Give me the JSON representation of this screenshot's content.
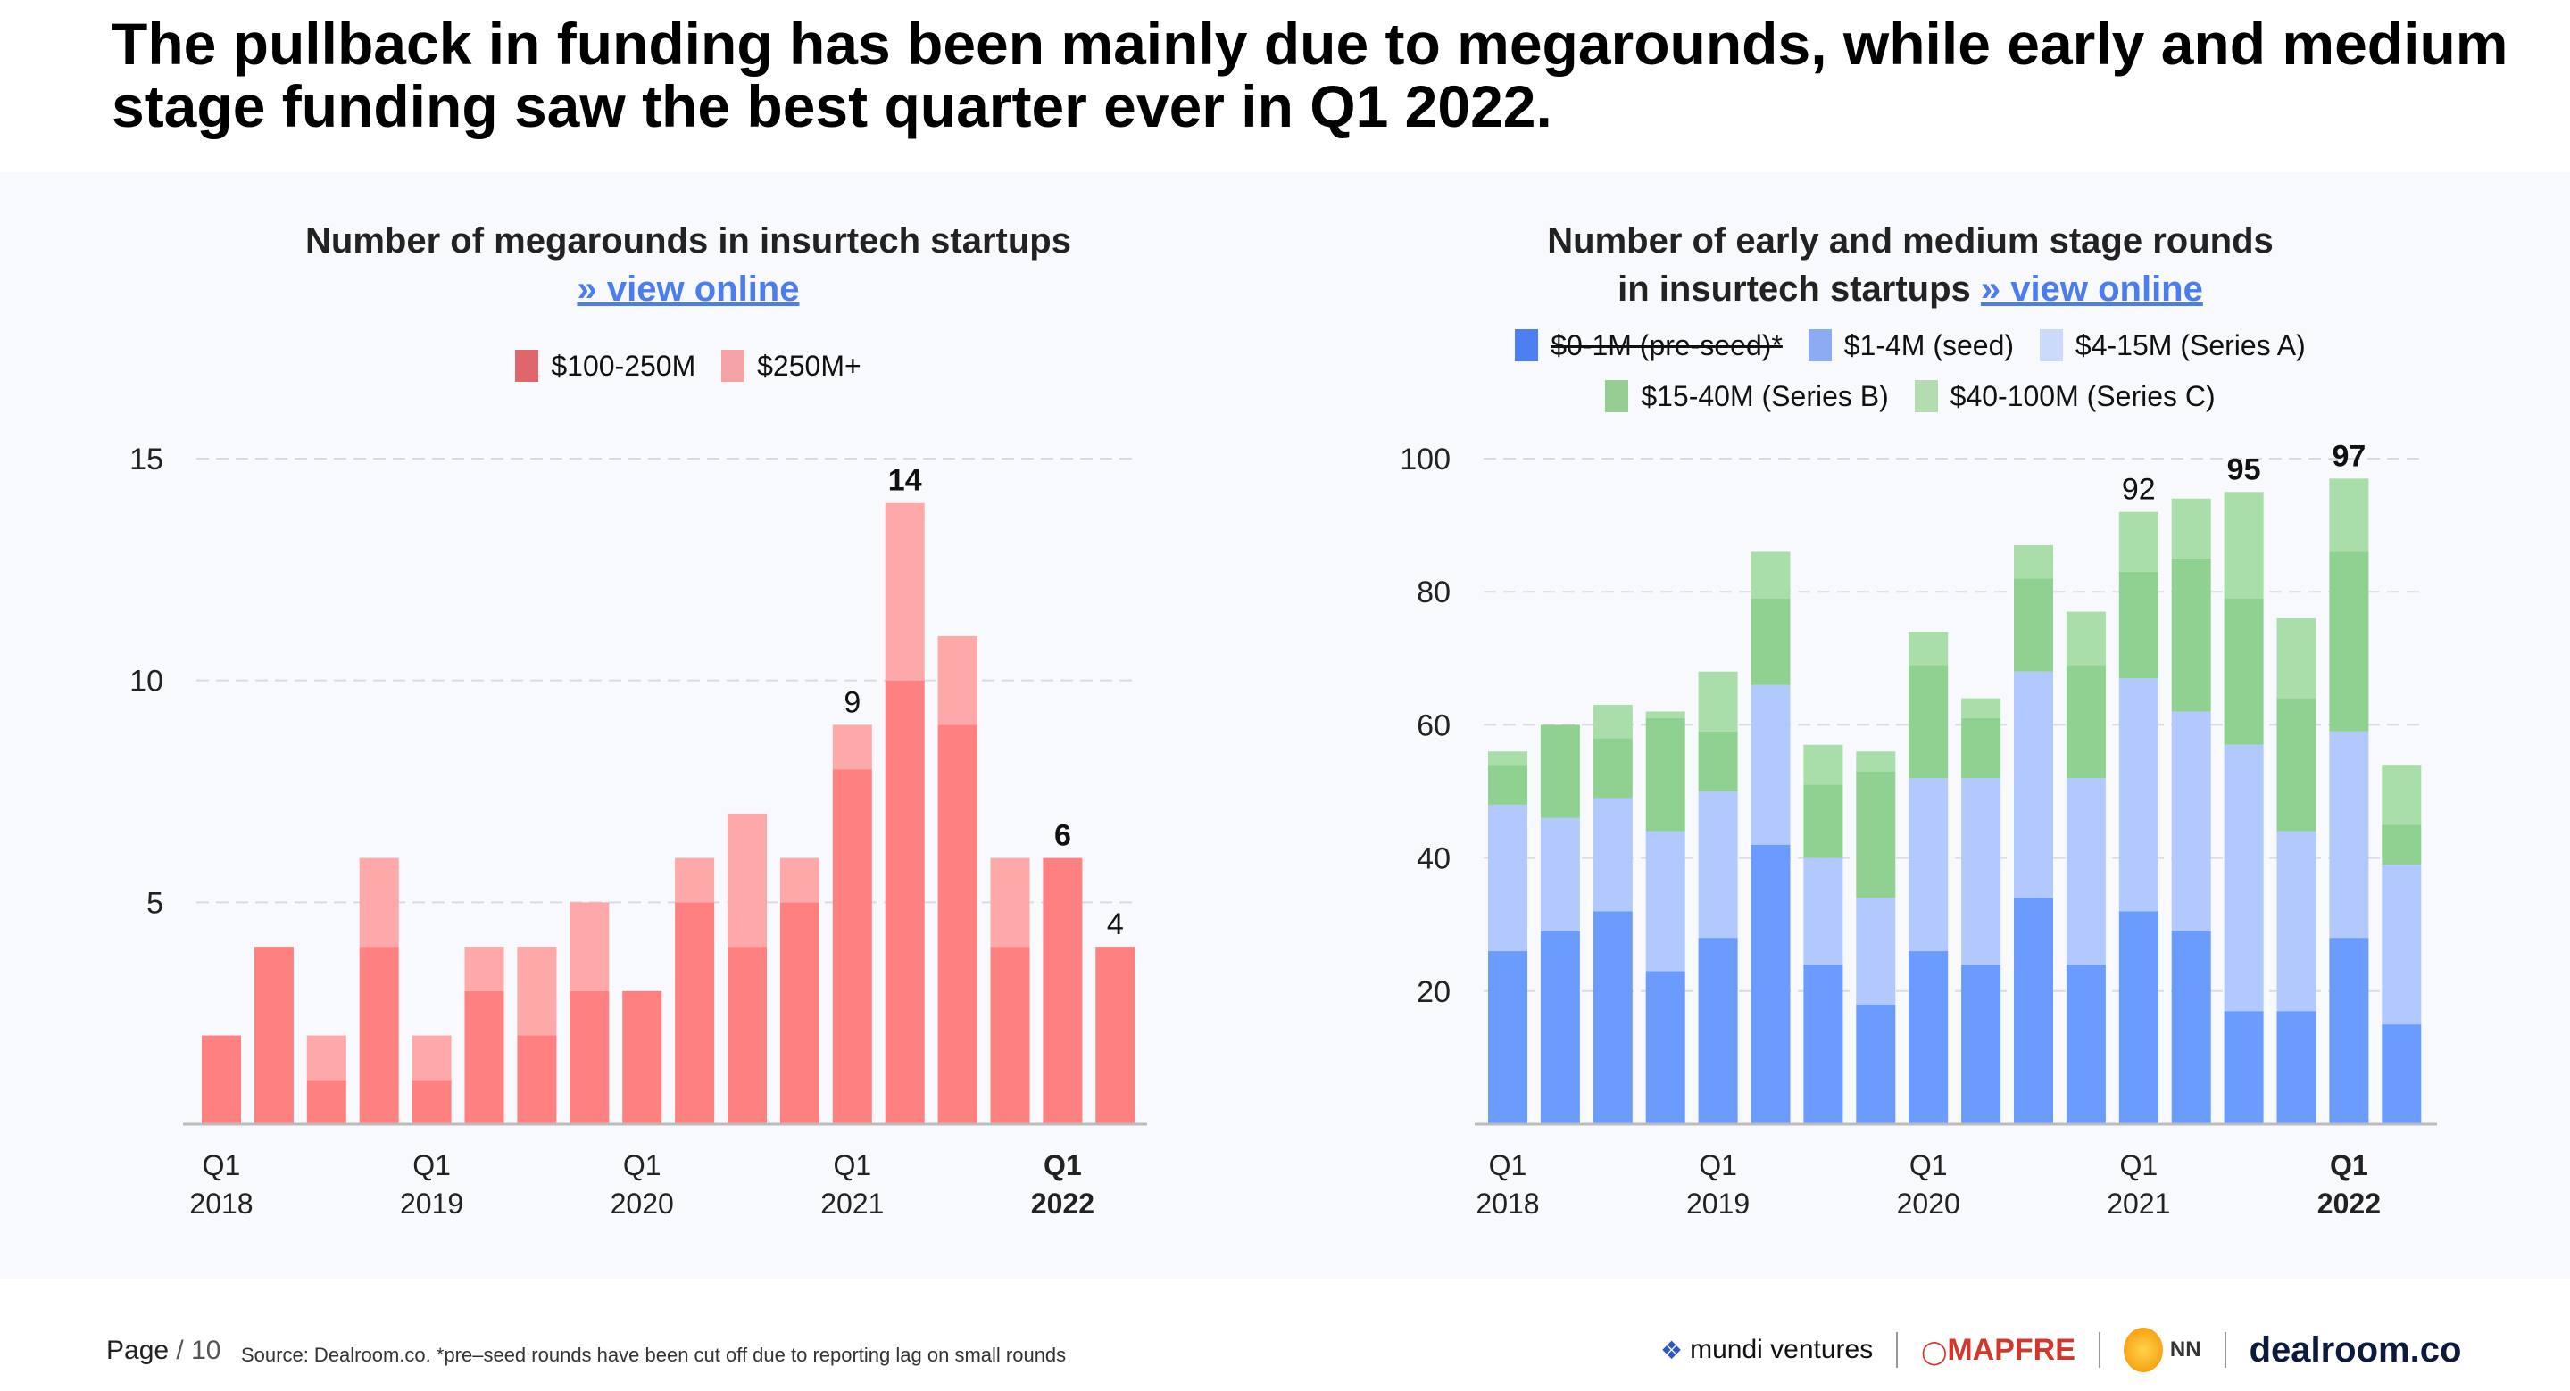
{
  "headline": "The pullback in funding has been mainly due to megarounds, while early and medium stage funding saw the best quarter ever in Q1 2022.",
  "colors": {
    "mega_100_250": "#fe8080",
    "mega_250_plus": "#fda9a9",
    "pre_seed": "#4d7ff2",
    "seed": "#6a9bfd",
    "series_a": "#b1c9fe",
    "series_b": "#8fd190",
    "series_c": "#a9dda9"
  },
  "chart_data": [
    {
      "type": "bar",
      "stacked": true,
      "title": "Number of megarounds in insurtech startups",
      "link_text": "» view online",
      "categories": [
        "Q1 2018",
        "Q2 2018",
        "Q3 2018",
        "Q4 2018",
        "Q1 2019",
        "Q2 2019",
        "Q3 2019",
        "Q4 2019",
        "Q1 2020",
        "Q2 2020",
        "Q3 2020",
        "Q4 2020",
        "Q1 2021",
        "Q2 2021",
        "Q3 2021",
        "Q4 2021",
        "Q1 2022",
        "Q2 2022"
      ],
      "x_ticks": [
        {
          "index": 0,
          "q": "Q1",
          "year": "2018",
          "bold": false
        },
        {
          "index": 4,
          "q": "Q1",
          "year": "2019",
          "bold": false
        },
        {
          "index": 8,
          "q": "Q1",
          "year": "2020",
          "bold": false
        },
        {
          "index": 12,
          "q": "Q1",
          "year": "2021",
          "bold": false
        },
        {
          "index": 16,
          "q": "Q1",
          "year": "2022",
          "bold": true
        }
      ],
      "y_ticks": [
        5,
        10,
        15
      ],
      "ylim": [
        0,
        15
      ],
      "grid": true,
      "legend_position": "top",
      "series": [
        {
          "name": "$100-250M",
          "color_key": "mega_100_250",
          "values": [
            2,
            4,
            1,
            4,
            1,
            3,
            2,
            3,
            3,
            5,
            4,
            5,
            8,
            10,
            9,
            4,
            6,
            4
          ]
        },
        {
          "name": "$250M+",
          "color_key": "mega_250_plus",
          "values": [
            0,
            0,
            1,
            2,
            1,
            1,
            2,
            2,
            0,
            1,
            3,
            1,
            1,
            4,
            2,
            2,
            0,
            0
          ]
        }
      ],
      "data_labels": [
        {
          "index": 12,
          "text": "9",
          "bold": false
        },
        {
          "index": 13,
          "text": "14",
          "bold": true
        },
        {
          "index": 16,
          "text": "6",
          "bold": true
        },
        {
          "index": 17,
          "text": "4",
          "bold": false
        }
      ]
    },
    {
      "type": "bar",
      "stacked": true,
      "title_line1": "Number of early and medium stage rounds",
      "title_line2": "in insurtech startups",
      "link_text": "» view online",
      "categories": [
        "Q1 2018",
        "Q2 2018",
        "Q3 2018",
        "Q4 2018",
        "Q1 2019",
        "Q2 2019",
        "Q3 2019",
        "Q4 2019",
        "Q1 2020",
        "Q2 2020",
        "Q3 2020",
        "Q4 2020",
        "Q1 2021",
        "Q2 2021",
        "Q3 2021",
        "Q4 2021",
        "Q1 2022",
        "Q2 2022"
      ],
      "x_ticks": [
        {
          "index": 0,
          "q": "Q1",
          "year": "2018",
          "bold": false
        },
        {
          "index": 4,
          "q": "Q1",
          "year": "2019",
          "bold": false
        },
        {
          "index": 8,
          "q": "Q1",
          "year": "2020",
          "bold": false
        },
        {
          "index": 12,
          "q": "Q1",
          "year": "2021",
          "bold": false
        },
        {
          "index": 16,
          "q": "Q1",
          "year": "2022",
          "bold": true
        }
      ],
      "y_ticks": [
        20,
        40,
        60,
        80,
        100
      ],
      "ylim": [
        0,
        100
      ],
      "grid": true,
      "legend_position": "top",
      "legend_extra": {
        "name": "$0-1M (pre-seed)*",
        "color_key": "pre_seed",
        "struck_out": true
      },
      "series": [
        {
          "name": "$1-4M (seed)",
          "color_key": "seed",
          "values": [
            26,
            29,
            32,
            23,
            28,
            42,
            24,
            18,
            26,
            24,
            34,
            24,
            32,
            29,
            17,
            17,
            28,
            15
          ]
        },
        {
          "name": "$4-15M (Series A)",
          "color_key": "series_a",
          "values": [
            22,
            17,
            17,
            21,
            22,
            24,
            16,
            16,
            26,
            28,
            34,
            28,
            35,
            33,
            40,
            27,
            31,
            24
          ]
        },
        {
          "name": "$15-40M (Series B)",
          "color_key": "series_b",
          "values": [
            6,
            14,
            9,
            17,
            9,
            13,
            11,
            19,
            17,
            9,
            14,
            17,
            16,
            23,
            22,
            20,
            27,
            6
          ]
        },
        {
          "name": "$40-100M (Series C)",
          "color_key": "series_c",
          "values": [
            2,
            0,
            5,
            1,
            9,
            7,
            6,
            3,
            5,
            3,
            5,
            8,
            9,
            9,
            16,
            12,
            11,
            9
          ]
        }
      ],
      "data_labels": [
        {
          "index": 12,
          "text": "92",
          "bold": false
        },
        {
          "index": 14,
          "text": "95",
          "bold": true
        },
        {
          "index": 16,
          "text": "97",
          "bold": true
        }
      ]
    }
  ],
  "footer": {
    "page_label": "Page",
    "page_number": "/ 10",
    "source": "Source: Dealroom.co.  *pre–seed rounds have been cut off due to reporting lag on small rounds",
    "logos": {
      "mundi": "mundi ventures",
      "mapfre": "MAPFRE",
      "nn": "NN",
      "dealroom": "dealroom.co"
    }
  }
}
